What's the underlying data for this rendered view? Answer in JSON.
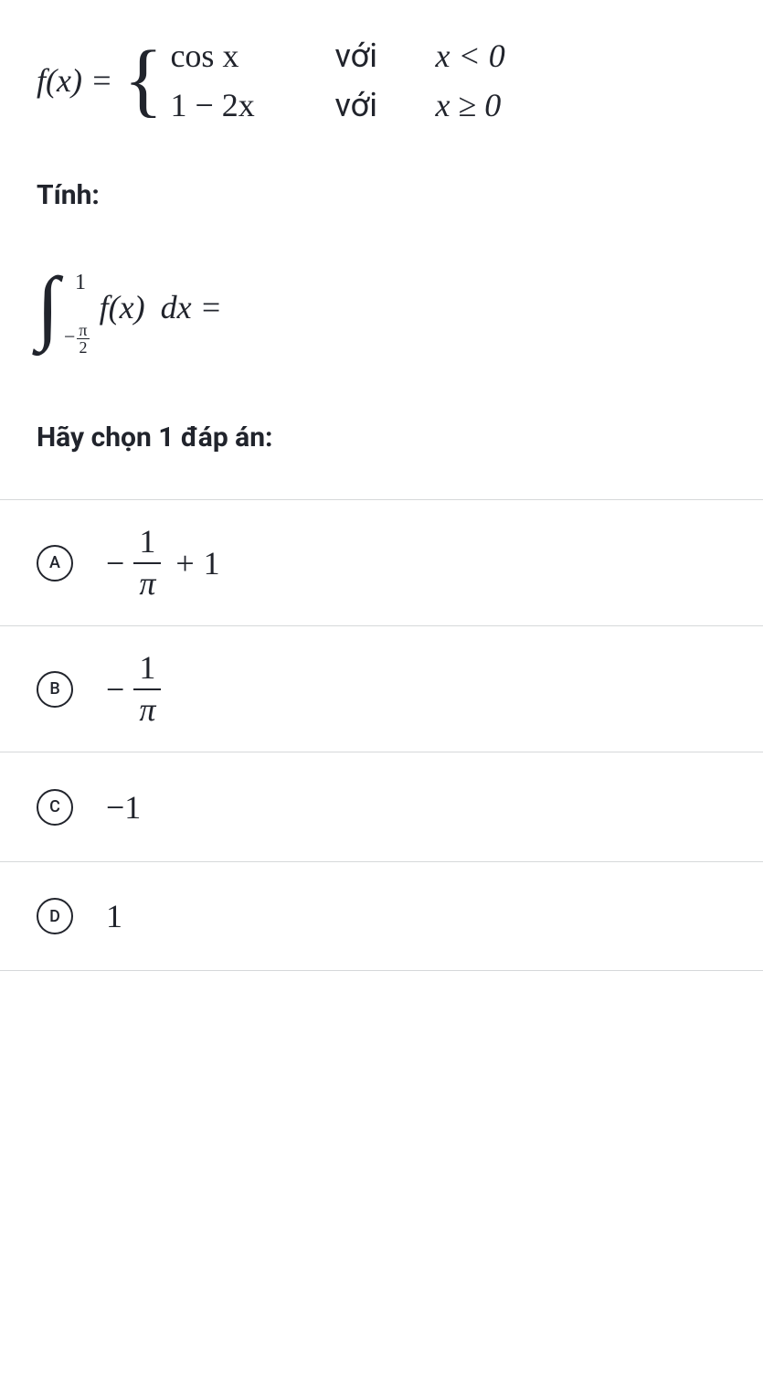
{
  "function_def": {
    "lhs": "f(x) = ",
    "case1_expr": "cos x",
    "case1_voi": "với",
    "case1_cond": "x < 0",
    "case2_expr": "1 − 2x",
    "case2_voi": "với",
    "case2_cond": "x ≥ 0"
  },
  "prompt_compute": "Tính:",
  "integral": {
    "upper": "1",
    "lower_prefix": "−",
    "lower_num": "π",
    "lower_den": "2",
    "integrand_fx": "f(x)",
    "integrand_dx": "dx",
    "equals": " ="
  },
  "prompt_choose": "Hãy chọn 1 đáp án:",
  "options": {
    "A": {
      "letter": "A",
      "type": "frac_plus",
      "minus": "−",
      "num": "1",
      "den": "π",
      "op": "+",
      "tail": "1"
    },
    "B": {
      "letter": "B",
      "type": "frac",
      "minus": "−",
      "num": "1",
      "den": "π"
    },
    "C": {
      "letter": "C",
      "type": "plain",
      "text": "−1"
    },
    "D": {
      "letter": "D",
      "type": "plain",
      "text": "1"
    }
  },
  "colors": {
    "text": "#21242c",
    "border": "#d6d8da",
    "background": "#ffffff"
  }
}
